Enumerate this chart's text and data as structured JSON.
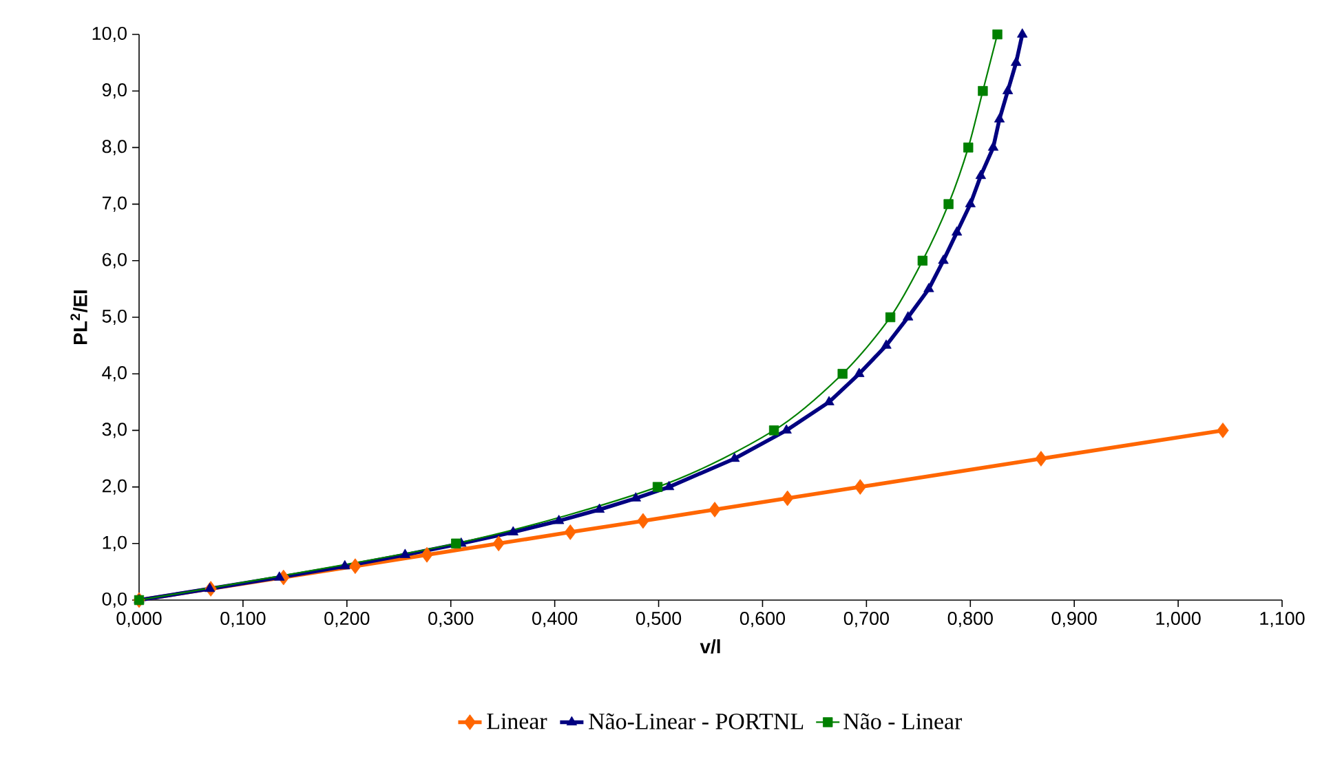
{
  "chart_data": {
    "type": "line",
    "xlabel": "v/l",
    "ylabel": "PL$^{2}$/EI",
    "legend": "bottom",
    "grid": false,
    "xlim": [
      0,
      1.1
    ],
    "ylim": [
      0,
      10
    ],
    "xticks": [
      {
        "value": 0,
        "label": "0,000"
      },
      {
        "value": 0.1,
        "label": "0,100"
      },
      {
        "value": 0.2,
        "label": "0,200"
      },
      {
        "value": 0.3,
        "label": "0,300"
      },
      {
        "value": 0.4,
        "label": "0,400"
      },
      {
        "value": 0.5,
        "label": "0,500"
      },
      {
        "value": 0.6,
        "label": "0,600"
      },
      {
        "value": 0.7,
        "label": "0,700"
      },
      {
        "value": 0.8,
        "label": "0,800"
      },
      {
        "value": 0.9,
        "label": "0,900"
      },
      {
        "value": 1.0,
        "label": "1,000"
      },
      {
        "value": 1.1,
        "label": "1,100"
      }
    ],
    "yticks": [
      {
        "value": 0,
        "label": "0,0"
      },
      {
        "value": 1,
        "label": "1,0"
      },
      {
        "value": 2,
        "label": "2,0"
      },
      {
        "value": 3,
        "label": "3,0"
      },
      {
        "value": 4,
        "label": "4,0"
      },
      {
        "value": 5,
        "label": "5,0"
      },
      {
        "value": 6,
        "label": "6,0"
      },
      {
        "value": 7,
        "label": "7,0"
      },
      {
        "value": 8,
        "label": "8,0"
      },
      {
        "value": 9,
        "label": "9,0"
      },
      {
        "value": 10,
        "label": "10,0"
      }
    ],
    "series": [
      {
        "name": "Linear",
        "color": "#ff6600",
        "marker": "diamond",
        "x": [
          0,
          0.069,
          0.139,
          0.208,
          0.277,
          0.346,
          0.415,
          0.485,
          0.554,
          0.624,
          0.694,
          0.868,
          1.043
        ],
        "values": [
          0,
          0.2,
          0.4,
          0.6,
          0.8,
          1.0,
          1.2,
          1.4,
          1.6,
          1.8,
          2.0,
          2.5,
          3.0
        ]
      },
      {
        "name": "Não-Linear - PORTNL",
        "color": "#000080",
        "marker": "triangle",
        "x": [
          0,
          0.068,
          0.135,
          0.198,
          0.256,
          0.31,
          0.36,
          0.404,
          0.443,
          0.478,
          0.51,
          0.573,
          0.623,
          0.664,
          0.693,
          0.719,
          0.74,
          0.76,
          0.774,
          0.787,
          0.8,
          0.81,
          0.822,
          0.828,
          0.836,
          0.844,
          0.85
        ],
        "values": [
          0,
          0.2,
          0.4,
          0.6,
          0.8,
          1.0,
          1.2,
          1.4,
          1.6,
          1.8,
          2.0,
          2.5,
          3.0,
          3.5,
          4.0,
          4.5,
          5.0,
          5.5,
          6.0,
          6.5,
          7.0,
          7.5,
          8.0,
          8.5,
          9.0,
          9.5,
          10.0
        ]
      },
      {
        "name": "Não - Linear",
        "color": "#008000",
        "marker": "square",
        "x": [
          0,
          0.305,
          0.499,
          0.611,
          0.677,
          0.723,
          0.754,
          0.779,
          0.798,
          0.812,
          0.826
        ],
        "values": [
          0,
          1,
          2,
          3,
          4,
          5,
          6,
          7,
          8,
          9,
          10
        ]
      }
    ]
  }
}
